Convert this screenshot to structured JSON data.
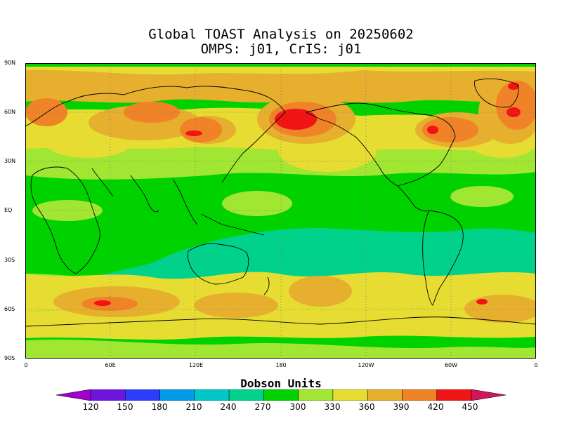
{
  "title_line1": "Global TOAST Analysis on 20250602",
  "title_line2": "OMPS: j01, CrIS: j01",
  "lat_labels": [
    "90N",
    "60N",
    "30N",
    "EQ",
    "30S",
    "60S",
    "90S"
  ],
  "lon_labels": [
    "0",
    "60E",
    "120E",
    "180",
    "120W",
    "60W",
    "0"
  ],
  "colorbar_title": "Dobson Units",
  "colorbar_values": [
    "120",
    "150",
    "180",
    "210",
    "240",
    "270",
    "300",
    "330",
    "360",
    "390",
    "420",
    "450"
  ],
  "colorbar_colors": [
    "#a000c8",
    "#6e14dc",
    "#2d3cff",
    "#009be6",
    "#00c8c8",
    "#00d28c",
    "#00d200",
    "#a0e632",
    "#e6dc32",
    "#e6af2d",
    "#f08228",
    "#f01414",
    "#d2145a"
  ],
  "chart_data": {
    "type": "heatmap",
    "title": "Global TOAST Analysis on 20250602",
    "subtitle": "OMPS: j01, CrIS: j01",
    "legend_title": "Dobson Units",
    "value_range": [
      120,
      450
    ],
    "x_range": [
      0,
      360
    ],
    "y_range": [
      -90,
      90
    ],
    "grid": "dotted"
  }
}
